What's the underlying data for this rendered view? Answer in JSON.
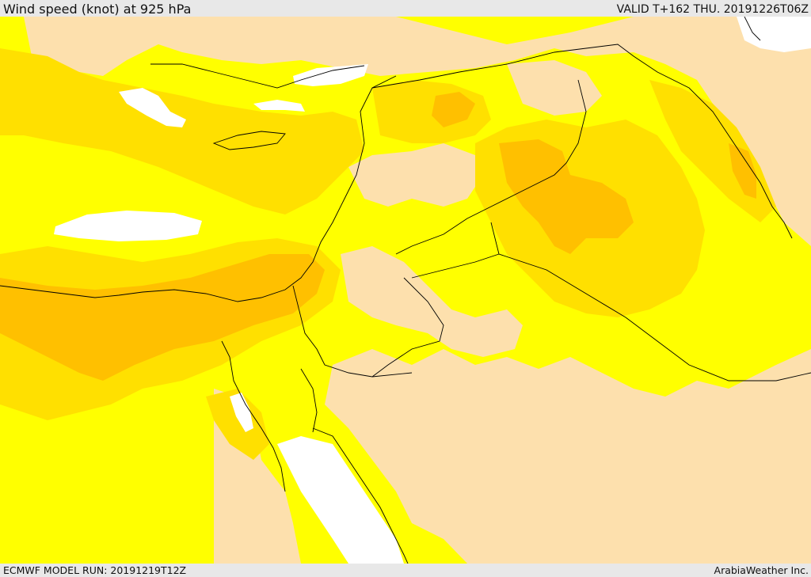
{
  "header": {
    "title": "Wind speed (knot) at 925 hPa",
    "valid": "VALID T+162 THU. 20191226T06Z"
  },
  "footer": {
    "model_run": "ECMWF MODEL RUN: 20191219T12Z",
    "credit": "ArabiaWeather Inc."
  },
  "map": {
    "colors": {
      "white": "#ffffff",
      "light_tan": "#fde0ad",
      "yellow": "#ffff00",
      "yellow_gold": "#ffe000",
      "gold": "#ffc000",
      "orange": "#ffb000",
      "border": "#000000"
    }
  }
}
